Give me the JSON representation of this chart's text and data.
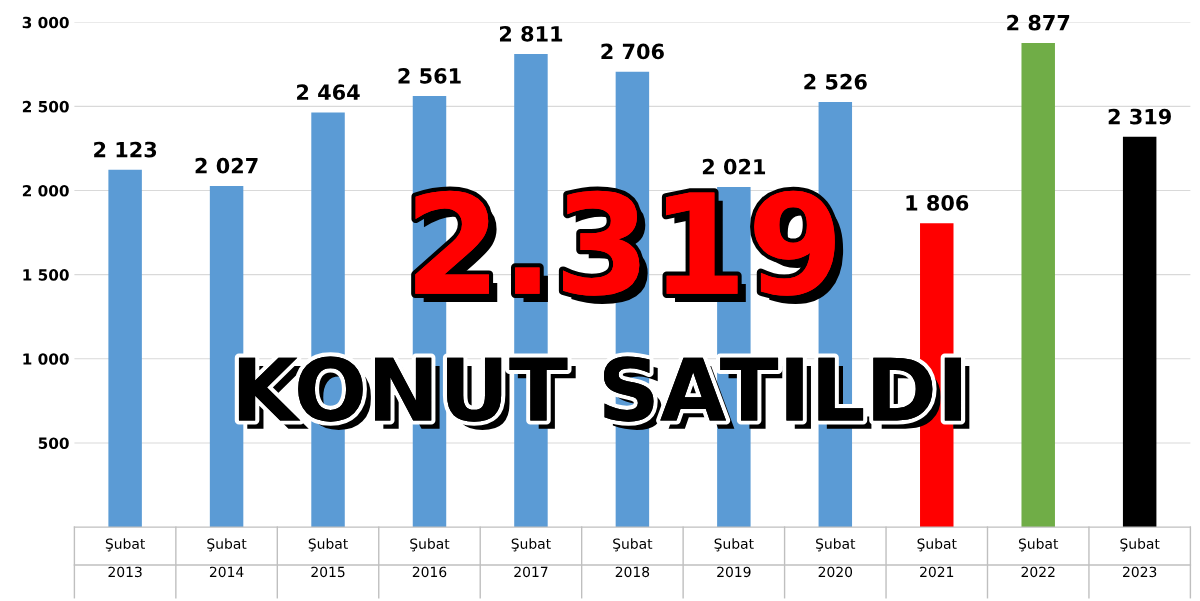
{
  "chart_data": {
    "type": "bar",
    "categories": [
      "Şubat\n2013",
      "Şubat\n2014",
      "Şubat\n2015",
      "Şubat\n2016",
      "Şubat\n2017",
      "Şubat\n2018",
      "Şubat\n2019",
      "Şubat\n2020",
      "Şubat\n2021",
      "Şubat\n2022",
      "Şubat\n2023"
    ],
    "values": [
      2123,
      2027,
      2464,
      2561,
      2811,
      2706,
      2021,
      2526,
      1806,
      2877,
      2319
    ],
    "colors": [
      "#5b9bd5",
      "#5b9bd5",
      "#5b9bd5",
      "#5b9bd5",
      "#5b9bd5",
      "#5b9bd5",
      "#5b9bd5",
      "#5b9bd5",
      "#ff0000",
      "#70ad47",
      "#000000"
    ],
    "value_labels": [
      "2 123",
      "2 027",
      "2 464",
      "2 561",
      "2 811",
      "2 706",
      "2 021",
      "2 526",
      "1 806",
      "2 877",
      "2 319"
    ],
    "ylim": [
      0,
      3000
    ],
    "yticks": [
      {
        "value": 500,
        "label": "500"
      },
      {
        "value": 1000,
        "label": "1 000"
      },
      {
        "value": 1500,
        "label": "1 500"
      },
      {
        "value": 2000,
        "label": "2 000"
      },
      {
        "value": 2500,
        "label": "2 500"
      },
      {
        "value": 3000,
        "label": "3 000"
      }
    ],
    "grid": "y",
    "annotations": [
      "2.319",
      "KONUT SATILDI"
    ]
  }
}
